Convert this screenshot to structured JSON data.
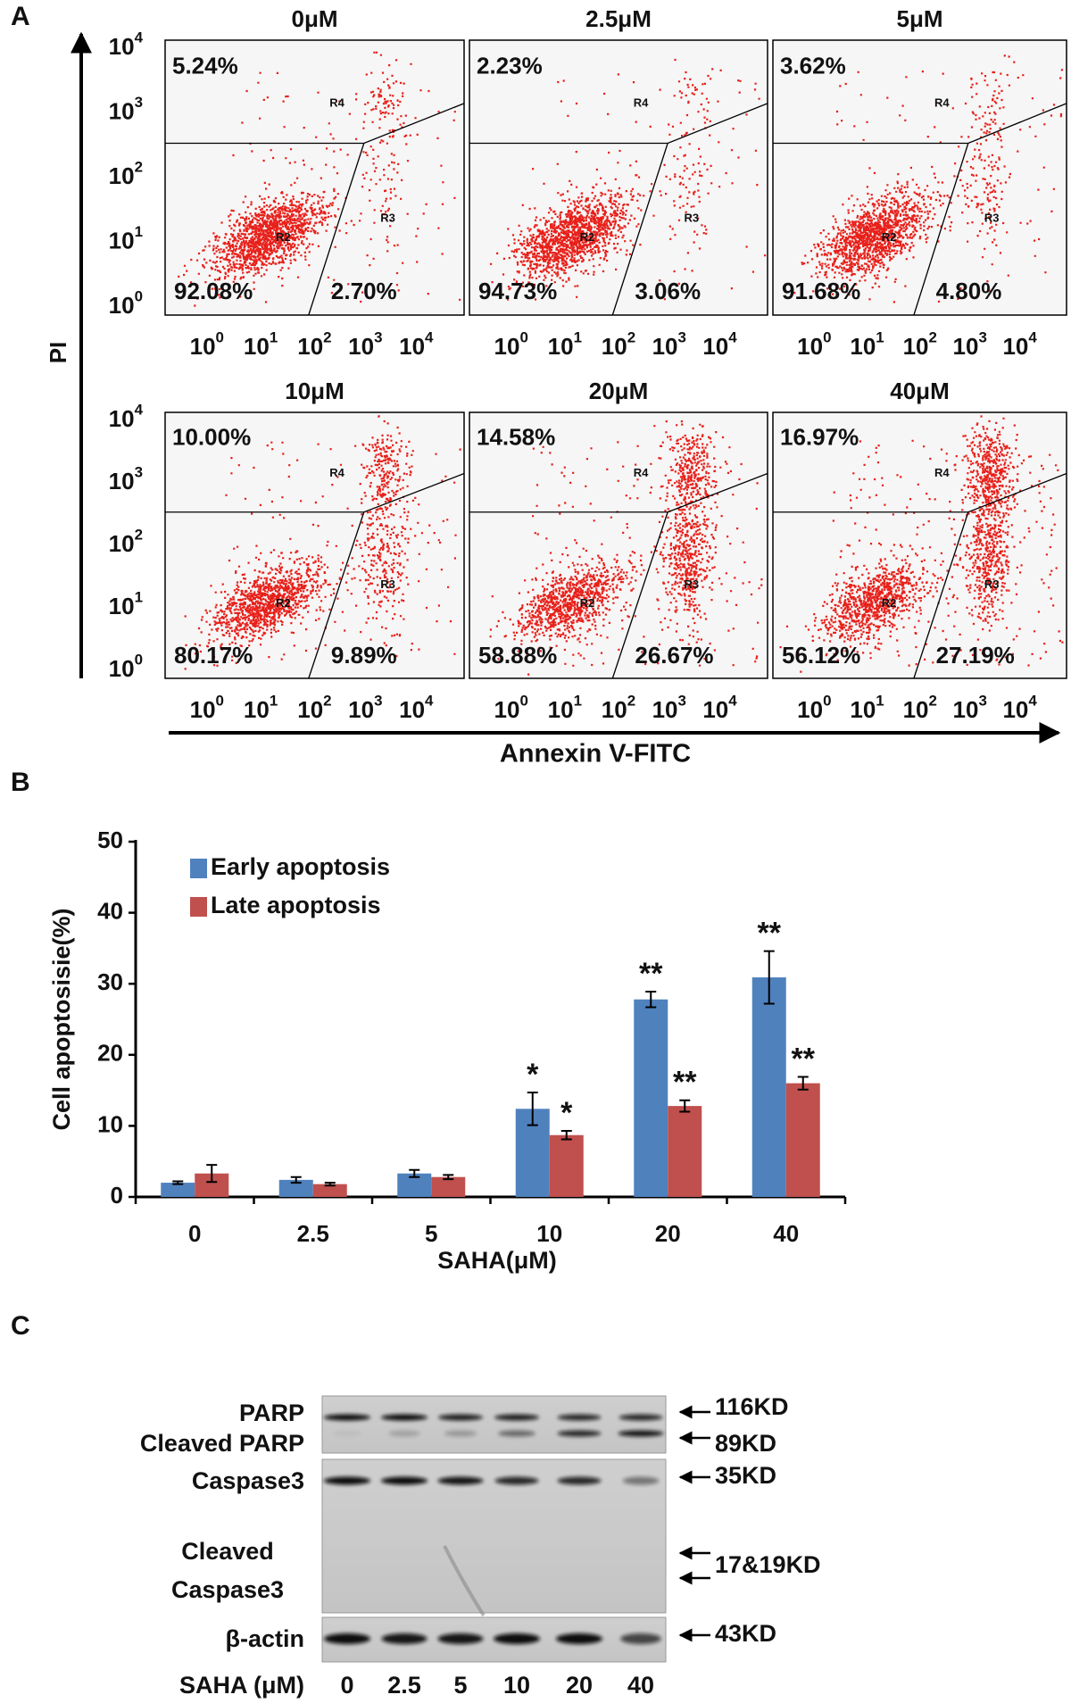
{
  "panel_labels": [
    "A",
    "B",
    "C"
  ],
  "flow": {
    "y_label": "PI",
    "x_label": "Annexin V-FITC",
    "ticks": [
      {
        "base": "10",
        "exp": "0"
      },
      {
        "base": "10",
        "exp": "1"
      },
      {
        "base": "10",
        "exp": "2"
      },
      {
        "base": "10",
        "exp": "3"
      },
      {
        "base": "10",
        "exp": "4"
      }
    ],
    "regions": [
      "R2",
      "R3",
      "R4"
    ],
    "panels": [
      {
        "title": "0μM",
        "upper_left": "5.24%",
        "lower_left": "92.08%",
        "lower_right": "2.70%"
      },
      {
        "title": "2.5μM",
        "upper_left": "2.23%",
        "lower_left": "94.73%",
        "lower_right": "3.06%"
      },
      {
        "title": "5μM",
        "upper_left": "3.62%",
        "lower_left": "91.68%",
        "lower_right": "4.80%"
      },
      {
        "title": "10μM",
        "upper_left": "10.00%",
        "lower_left": "80.17%",
        "lower_right": "9.89%"
      },
      {
        "title": "20μM",
        "upper_left": "14.58%",
        "lower_left": "58.88%",
        "lower_right": "26.67%"
      },
      {
        "title": "40μM",
        "upper_left": "16.97%",
        "lower_left": "56.12%",
        "lower_right": "27.19%"
      }
    ]
  },
  "chart_data": {
    "type": "bar",
    "x_label": "SAHA(μM)",
    "y_label": "Cell apoptosisie(%)",
    "categories": [
      "0",
      "2.5",
      "5",
      "10",
      "20",
      "40"
    ],
    "series": [
      {
        "name": "Early apoptosis",
        "color": "#4f81bd",
        "values": [
          2.0,
          2.4,
          3.3,
          12.4,
          27.8,
          30.9
        ],
        "errors": [
          0.2,
          0.4,
          0.5,
          2.3,
          1.1,
          3.7
        ],
        "significance": [
          null,
          null,
          null,
          "*",
          "**",
          "**"
        ]
      },
      {
        "name": "Late apoptosis",
        "color": "#c0504d",
        "values": [
          3.3,
          1.8,
          2.8,
          8.7,
          12.8,
          16.0
        ],
        "errors": [
          1.2,
          0.2,
          0.3,
          0.6,
          0.8,
          0.9
        ],
        "significance": [
          null,
          null,
          null,
          "*",
          "**",
          "**"
        ]
      }
    ],
    "ylim": [
      0,
      50
    ],
    "yticks": [
      0,
      10,
      20,
      30,
      40,
      50
    ]
  },
  "blot": {
    "labels": [
      [
        "PARP"
      ],
      [
        "Cleaved PARP"
      ],
      [
        "Caspase3"
      ],
      [
        "Cleaved",
        "Caspase3"
      ],
      [
        "β-actin"
      ]
    ],
    "markers": [
      "116KD",
      "89KD",
      "35KD",
      "17&19KD",
      "43KD"
    ],
    "x_label": "SAHA (μM)",
    "lanes": [
      "0",
      "2.5",
      "5",
      "10",
      "20",
      "40"
    ]
  }
}
